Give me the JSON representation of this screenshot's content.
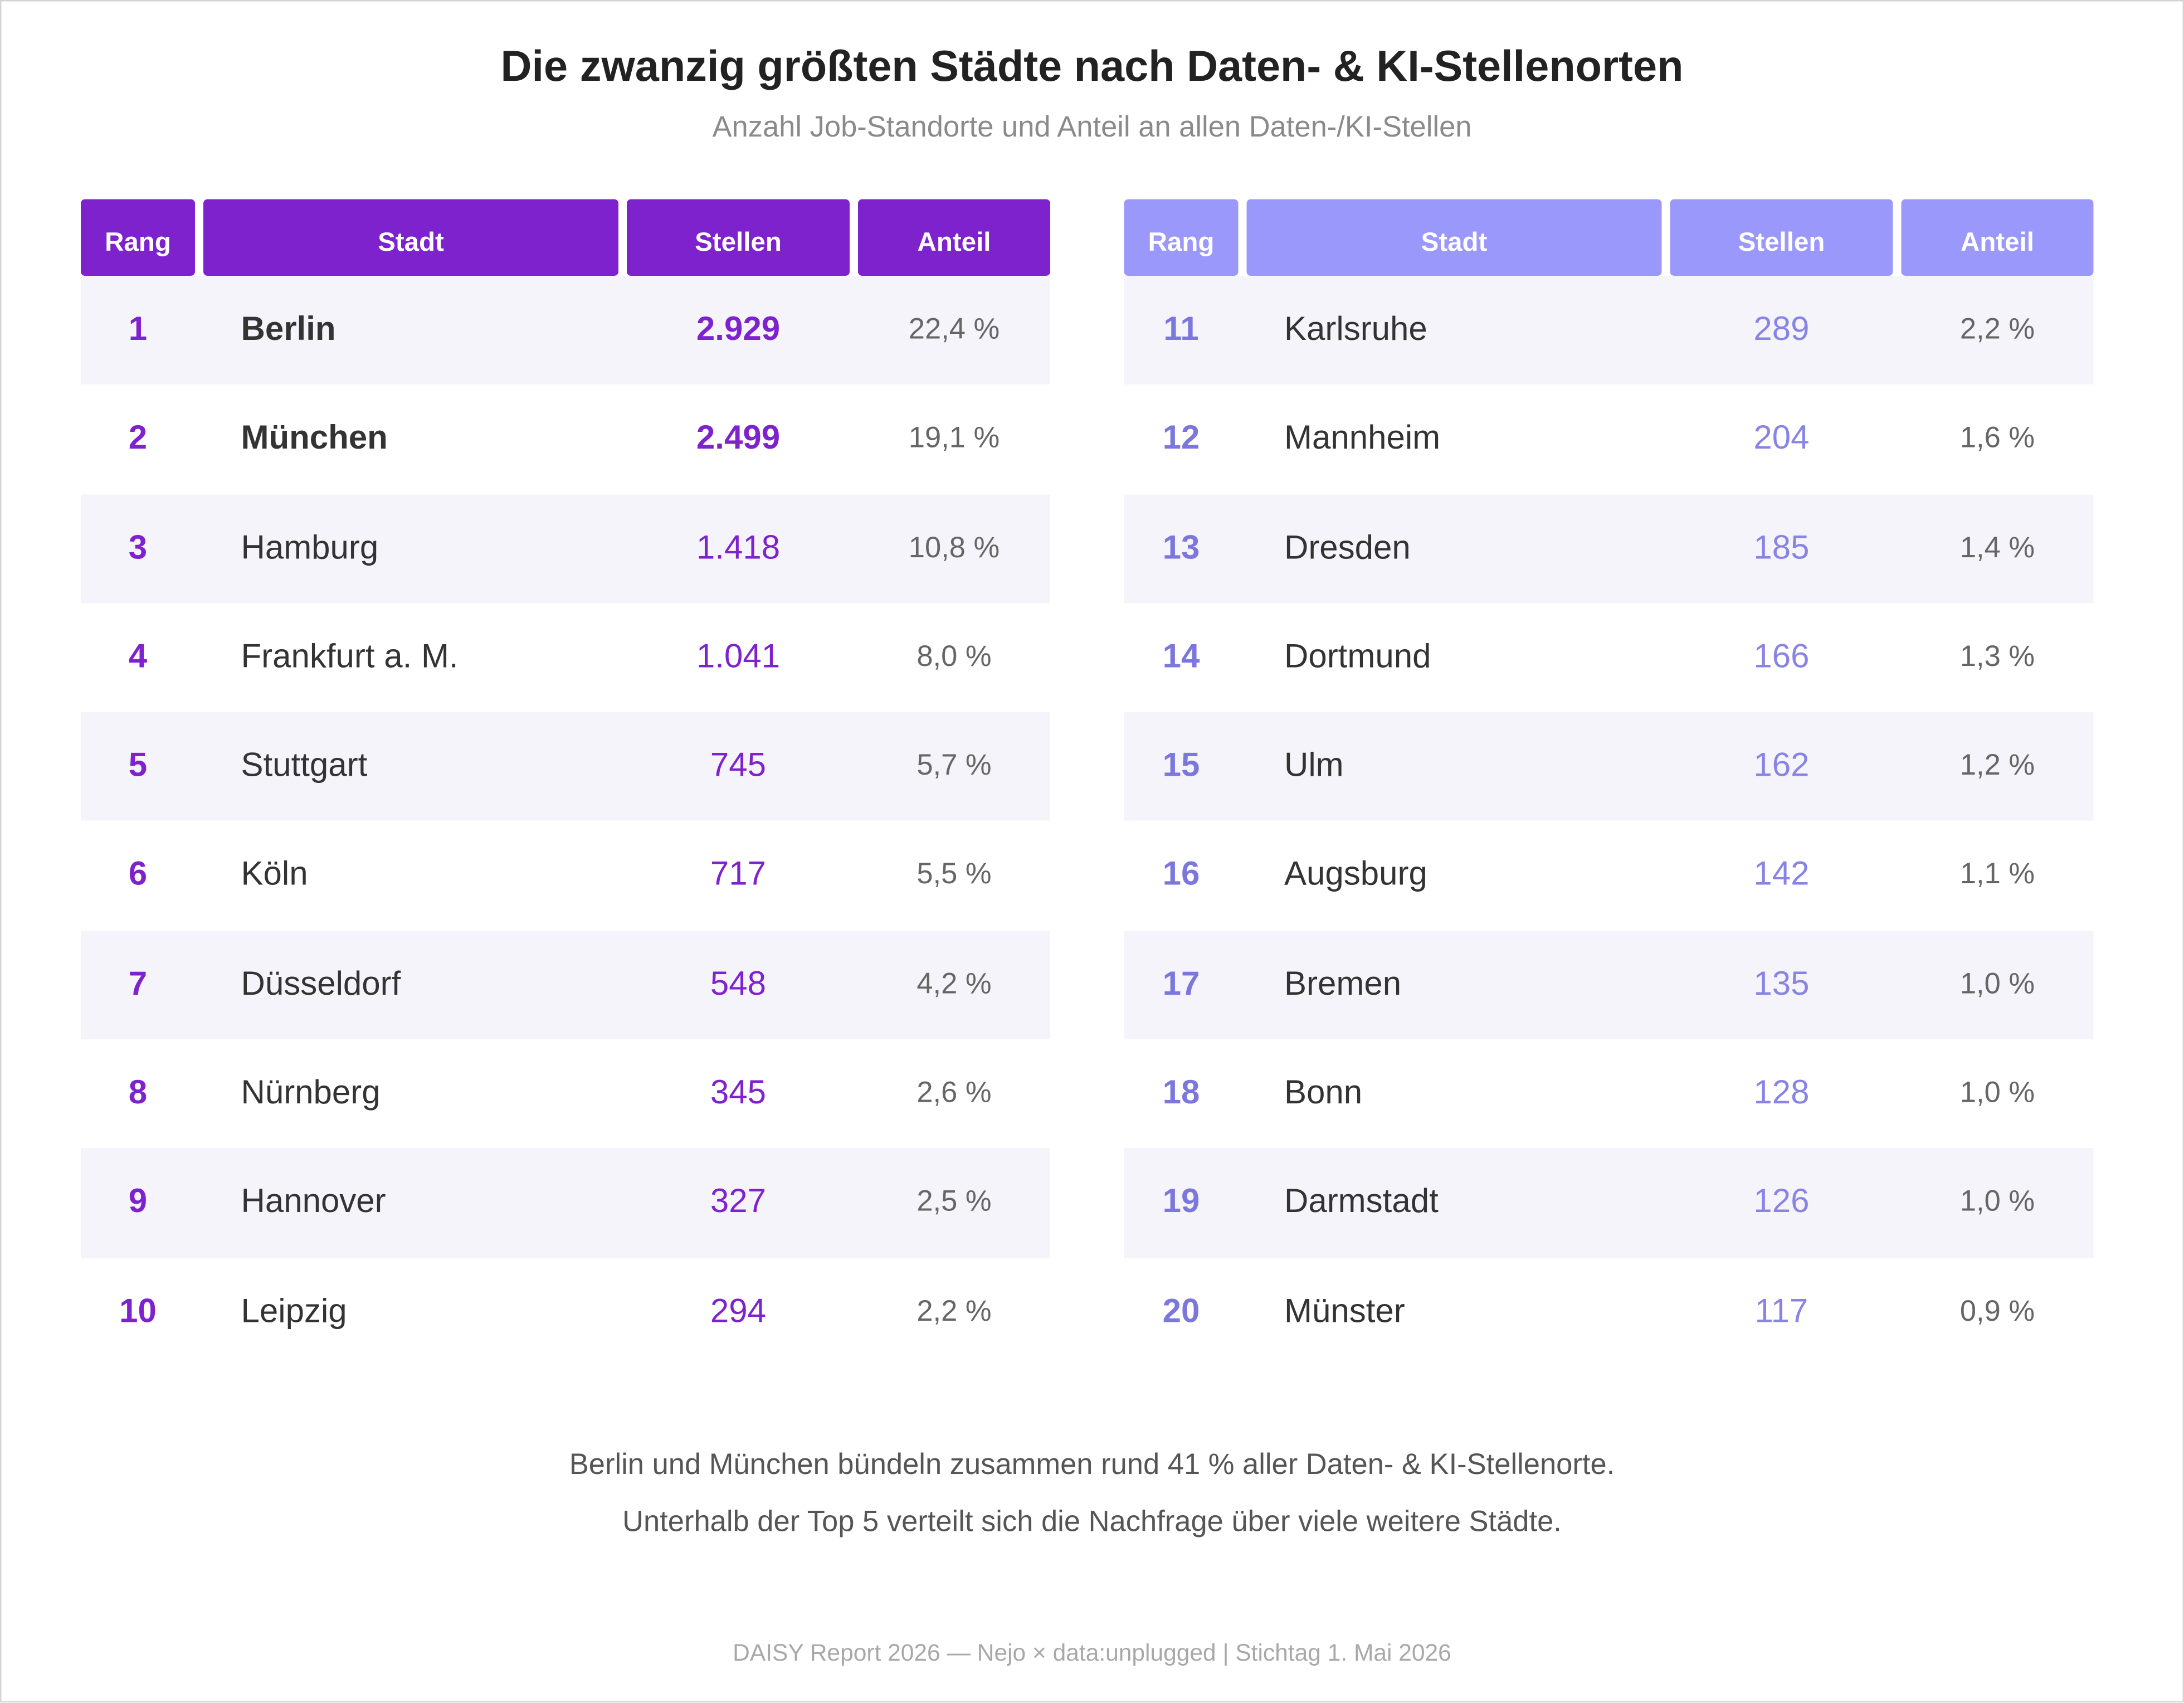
{
  "title": "Die zwanzig größten Städte nach Daten- & KI-Stellenorten",
  "subtitle": "Anzahl Job-Standorte und Anteil an allen Daten-/KI-Stellen",
  "headers": {
    "rank": "Rang",
    "city": "Stadt",
    "jobs": "Stellen",
    "share": "Anteil"
  },
  "colors": {
    "left_header": "#7e22ce",
    "right_header": "#9b98fc",
    "row_shade": "#f6f4fb"
  },
  "chart_data": {
    "type": "table",
    "columns": [
      "Rang",
      "Stadt",
      "Stellen",
      "Anteil"
    ],
    "rows_left": [
      {
        "rank": "1",
        "city": "Berlin",
        "jobs": "2.929",
        "share": "22,4 %"
      },
      {
        "rank": "2",
        "city": "München",
        "jobs": "2.499",
        "share": "19,1 %"
      },
      {
        "rank": "3",
        "city": "Hamburg",
        "jobs": "1.418",
        "share": "10,8 %"
      },
      {
        "rank": "4",
        "city": "Frankfurt a. M.",
        "jobs": "1.041",
        "share": "8,0 %"
      },
      {
        "rank": "5",
        "city": "Stuttgart",
        "jobs": "745",
        "share": "5,7 %"
      },
      {
        "rank": "6",
        "city": "Köln",
        "jobs": "717",
        "share": "5,5 %"
      },
      {
        "rank": "7",
        "city": "Düsseldorf",
        "jobs": "548",
        "share": "4,2 %"
      },
      {
        "rank": "8",
        "city": "Nürnberg",
        "jobs": "345",
        "share": "2,6 %"
      },
      {
        "rank": "9",
        "city": "Hannover",
        "jobs": "327",
        "share": "2,5 %"
      },
      {
        "rank": "10",
        "city": "Leipzig",
        "jobs": "294",
        "share": "2,2 %"
      }
    ],
    "rows_right": [
      {
        "rank": "11",
        "city": "Karlsruhe",
        "jobs": "289",
        "share": "2,2 %"
      },
      {
        "rank": "12",
        "city": "Mannheim",
        "jobs": "204",
        "share": "1,6 %"
      },
      {
        "rank": "13",
        "city": "Dresden",
        "jobs": "185",
        "share": "1,4 %"
      },
      {
        "rank": "14",
        "city": "Dortmund",
        "jobs": "166",
        "share": "1,3 %"
      },
      {
        "rank": "15",
        "city": "Ulm",
        "jobs": "162",
        "share": "1,2 %"
      },
      {
        "rank": "16",
        "city": "Augsburg",
        "jobs": "142",
        "share": "1,1 %"
      },
      {
        "rank": "17",
        "city": "Bremen",
        "jobs": "135",
        "share": "1,0 %"
      },
      {
        "rank": "18",
        "city": "Bonn",
        "jobs": "128",
        "share": "1,0 %"
      },
      {
        "rank": "19",
        "city": "Darmstadt",
        "jobs": "126",
        "share": "1,0 %"
      },
      {
        "rank": "20",
        "city": "Münster",
        "jobs": "117",
        "share": "0,9 %"
      }
    ]
  },
  "notes": {
    "line1": "Berlin und München bündeln zusammen rund 41 % aller Daten- & KI-Stellenorte.",
    "line2": "Unterhalb der Top 5 verteilt sich die Nachfrage über viele weitere Städte."
  },
  "source": "DAISY Report 2026 — Nejo × data:unplugged | Stichtag 1. Mai 2026"
}
